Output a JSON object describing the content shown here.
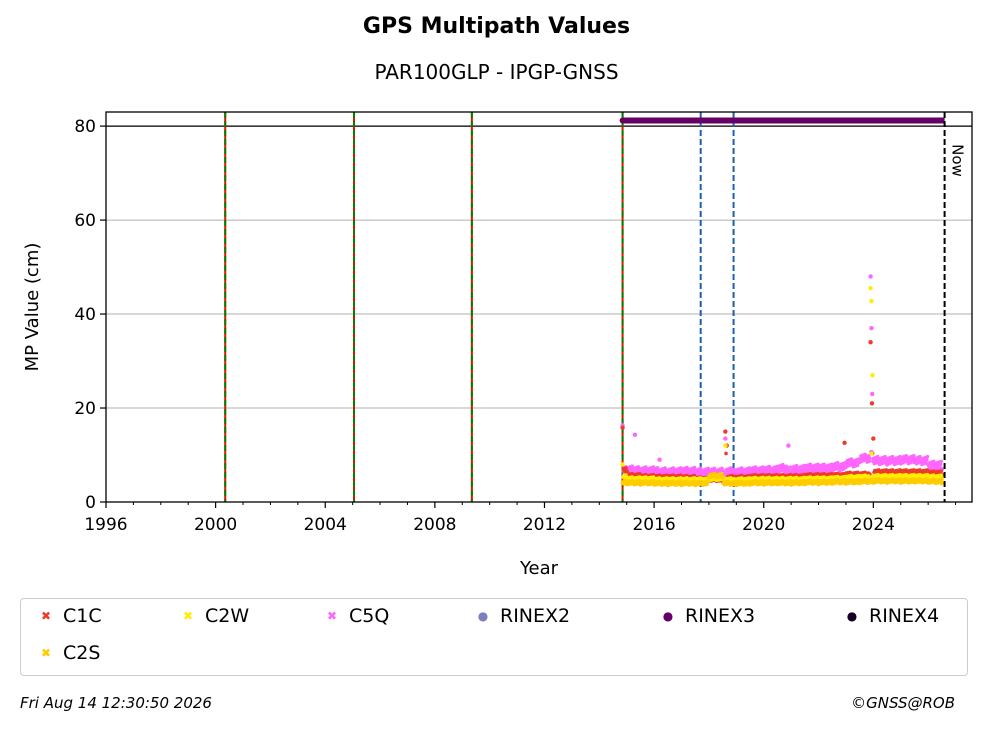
{
  "header": {
    "title": "GPS Multipath Values",
    "subtitle": "PAR100GLP - IPGP-GNSS"
  },
  "footer": {
    "timestamp": "Fri Aug 14 12:30:50 2026",
    "copyright": "©GNSS@ROB"
  },
  "colors": {
    "C1C": "#ee3b2c",
    "C2W": "#ffee00",
    "C2S": "#ffcc00",
    "C5Q": "#ff66ff",
    "RINEX2": "#7f7fbf",
    "RINEX3": "#660066",
    "RINEX4": "#1a0022",
    "event_green": "#008000",
    "event_red": "#ff0000",
    "event_blue": "#1f5faa",
    "grid": "#b0b0b0"
  },
  "legend": [
    {
      "label": "C1C",
      "marker": "x",
      "color": "#ee3b2c"
    },
    {
      "label": "C2W",
      "marker": "x",
      "color": "#ffee00"
    },
    {
      "label": "C5Q",
      "marker": "x",
      "color": "#ff66ff"
    },
    {
      "label": "RINEX2",
      "marker": "dot",
      "color": "#7f7fbf"
    },
    {
      "label": "RINEX3",
      "marker": "dot",
      "color": "#660066"
    },
    {
      "label": "RINEX4",
      "marker": "dot",
      "color": "#1a0022"
    },
    {
      "label": "C2S",
      "marker": "x",
      "color": "#ffcc00"
    }
  ],
  "chart_data": {
    "type": "scatter",
    "title": "GPS Multipath Values",
    "subtitle": "PAR100GLP - IPGP-GNSS",
    "xlabel": "Year",
    "ylabel": "MP Value (cm)",
    "xlim": [
      1996,
      2027.6
    ],
    "ylim": [
      0,
      83
    ],
    "x_ticks": [
      1996,
      2000,
      2004,
      2008,
      2012,
      2016,
      2020,
      2024
    ],
    "y_ticks": [
      0,
      20,
      40,
      60,
      80
    ],
    "grid": "horizontal",
    "reference_line_y": 80,
    "now_marker": {
      "x": 2026.6,
      "label": "Now"
    },
    "equipment_change_lines": [
      2000.35,
      2005.05,
      2009.35,
      2014.85
    ],
    "other_event_lines": [
      2017.7,
      2018.9
    ],
    "rinex3_availability": {
      "start": 2014.85,
      "end": 2026.6,
      "y": 81.2
    },
    "series": [
      {
        "name": "C1C",
        "points": [
          [
            2014.85,
            15.8
          ],
          [
            2015.0,
            6.5
          ],
          [
            2015.5,
            5.2
          ],
          [
            2016.0,
            5.0
          ],
          [
            2016.5,
            4.9
          ],
          [
            2017.0,
            5.0
          ],
          [
            2017.5,
            4.8
          ],
          [
            2018.0,
            4.5
          ],
          [
            2018.5,
            4.4
          ],
          [
            2018.6,
            15.0
          ],
          [
            2018.65,
            12.0
          ],
          [
            2019.0,
            4.8
          ],
          [
            2019.5,
            5.0
          ],
          [
            2020.0,
            5.0
          ],
          [
            2020.5,
            5.1
          ],
          [
            2021.0,
            5.0
          ],
          [
            2021.5,
            5.2
          ],
          [
            2022.0,
            5.2
          ],
          [
            2022.5,
            5.3
          ],
          [
            2022.95,
            12.6
          ],
          [
            2023.5,
            5.5
          ],
          [
            2023.9,
            34.0
          ],
          [
            2023.95,
            21.0
          ],
          [
            2024.0,
            13.5
          ],
          [
            2024.5,
            6.0
          ],
          [
            2025.0,
            6.0
          ],
          [
            2025.5,
            6.2
          ],
          [
            2026.0,
            6.0
          ],
          [
            2026.5,
            5.8
          ]
        ]
      },
      {
        "name": "C2W",
        "points": [
          [
            2014.85,
            8.0
          ],
          [
            2015.0,
            5.0
          ],
          [
            2015.5,
            4.5
          ],
          [
            2016.0,
            4.5
          ],
          [
            2016.5,
            4.3
          ],
          [
            2017.0,
            4.4
          ],
          [
            2017.5,
            4.3
          ],
          [
            2018.0,
            4.6
          ],
          [
            2018.6,
            12.0
          ],
          [
            2019.0,
            4.3
          ],
          [
            2019.5,
            4.4
          ],
          [
            2020.0,
            4.4
          ],
          [
            2020.5,
            4.5
          ],
          [
            2021.0,
            4.4
          ],
          [
            2021.5,
            4.6
          ],
          [
            2022.0,
            4.5
          ],
          [
            2022.5,
            4.6
          ],
          [
            2023.0,
            4.8
          ],
          [
            2023.5,
            4.9
          ],
          [
            2023.9,
            45.5
          ],
          [
            2023.93,
            42.8
          ],
          [
            2023.97,
            27.0
          ],
          [
            2024.5,
            5.0
          ],
          [
            2025.0,
            5.0
          ],
          [
            2025.5,
            5.1
          ],
          [
            2026.0,
            5.0
          ],
          [
            2026.5,
            4.9
          ]
        ]
      },
      {
        "name": "C5Q",
        "points": [
          [
            2014.85,
            16.3
          ],
          [
            2015.0,
            6.0
          ],
          [
            2015.3,
            14.3
          ],
          [
            2015.5,
            6.0
          ],
          [
            2016.0,
            5.8
          ],
          [
            2016.2,
            9.0
          ],
          [
            2016.5,
            5.6
          ],
          [
            2017.0,
            5.9
          ],
          [
            2017.5,
            5.7
          ],
          [
            2018.0,
            5.5
          ],
          [
            2018.6,
            13.5
          ],
          [
            2019.0,
            5.6
          ],
          [
            2019.5,
            5.8
          ],
          [
            2020.0,
            5.9
          ],
          [
            2020.5,
            6.3
          ],
          [
            2020.9,
            12.0
          ],
          [
            2021.0,
            6.1
          ],
          [
            2021.5,
            6.5
          ],
          [
            2022.0,
            6.4
          ],
          [
            2022.5,
            6.7
          ],
          [
            2023.0,
            7.5
          ],
          [
            2023.5,
            8.5
          ],
          [
            2023.9,
            48.0
          ],
          [
            2023.93,
            37.0
          ],
          [
            2023.96,
            23.0
          ],
          [
            2024.5,
            8.0
          ],
          [
            2025.0,
            8.2
          ],
          [
            2025.5,
            8.5
          ],
          [
            2026.0,
            8.0
          ],
          [
            2026.5,
            7.0
          ]
        ]
      },
      {
        "name": "C2S",
        "points": [
          [
            2014.85,
            4.0
          ],
          [
            2015.0,
            3.8
          ],
          [
            2015.5,
            3.7
          ],
          [
            2016.0,
            3.7
          ],
          [
            2016.5,
            3.6
          ],
          [
            2017.0,
            3.6
          ],
          [
            2017.5,
            3.6
          ],
          [
            2018.0,
            5.3
          ],
          [
            2018.5,
            5.2
          ],
          [
            2019.0,
            3.6
          ],
          [
            2019.5,
            3.7
          ],
          [
            2020.0,
            3.7
          ],
          [
            2020.5,
            3.8
          ],
          [
            2021.0,
            3.7
          ],
          [
            2021.5,
            3.8
          ],
          [
            2022.0,
            3.8
          ],
          [
            2022.5,
            3.9
          ],
          [
            2023.0,
            3.9
          ],
          [
            2023.5,
            4.0
          ],
          [
            2024.0,
            4.1
          ],
          [
            2024.5,
            4.1
          ],
          [
            2025.0,
            4.1
          ],
          [
            2025.5,
            4.2
          ],
          [
            2026.0,
            4.1
          ],
          [
            2026.5,
            4.0
          ]
        ]
      }
    ]
  }
}
